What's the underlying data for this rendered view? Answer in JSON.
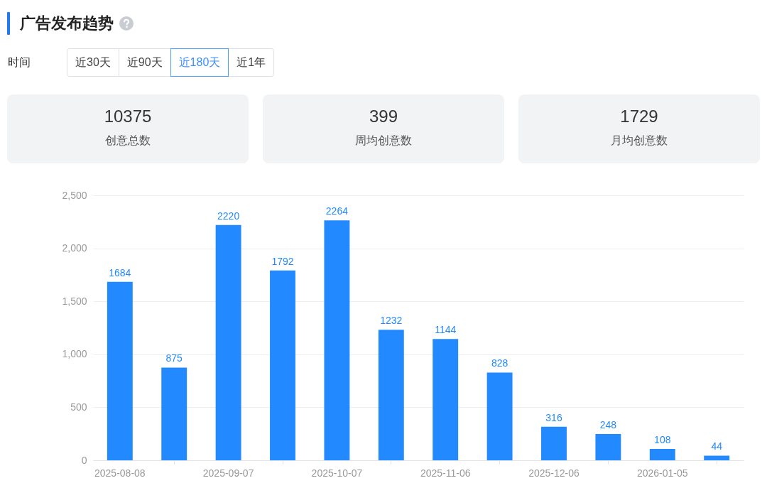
{
  "chart_data": [
    {
      "type": "other",
      "title": "广告发布趋势",
      "annotations": [
        "时间",
        "近30天",
        "近90天",
        "近180天",
        "近1年",
        "10375",
        "创意总数",
        "399",
        "周均创意数",
        "1729",
        "月均创意数"
      ]
    },
    {
      "type": "bar",
      "categories": [
        "2025-08-08",
        null,
        "2025-09-07",
        null,
        "2025-10-07",
        null,
        "2025-11-06",
        null,
        "2025-12-06",
        null,
        "2026-01-05",
        null
      ],
      "values": [
        1684,
        875,
        2220,
        1792,
        2264,
        1232,
        1144,
        828,
        316,
        248,
        108,
        44
      ],
      "color": "#2389ff",
      "ylim": [
        0,
        2500
      ],
      "yticks": [
        0,
        500,
        {
          "value": 1000,
          "label": "1,000"
        },
        {
          "value": 1500,
          "label": "1,500"
        },
        {
          "value": 2000,
          "label": "2,000"
        },
        {
          "value": 2500,
          "label": "2,500"
        }
      ],
      "grid": "y",
      "data_labels": true
    }
  ]
}
